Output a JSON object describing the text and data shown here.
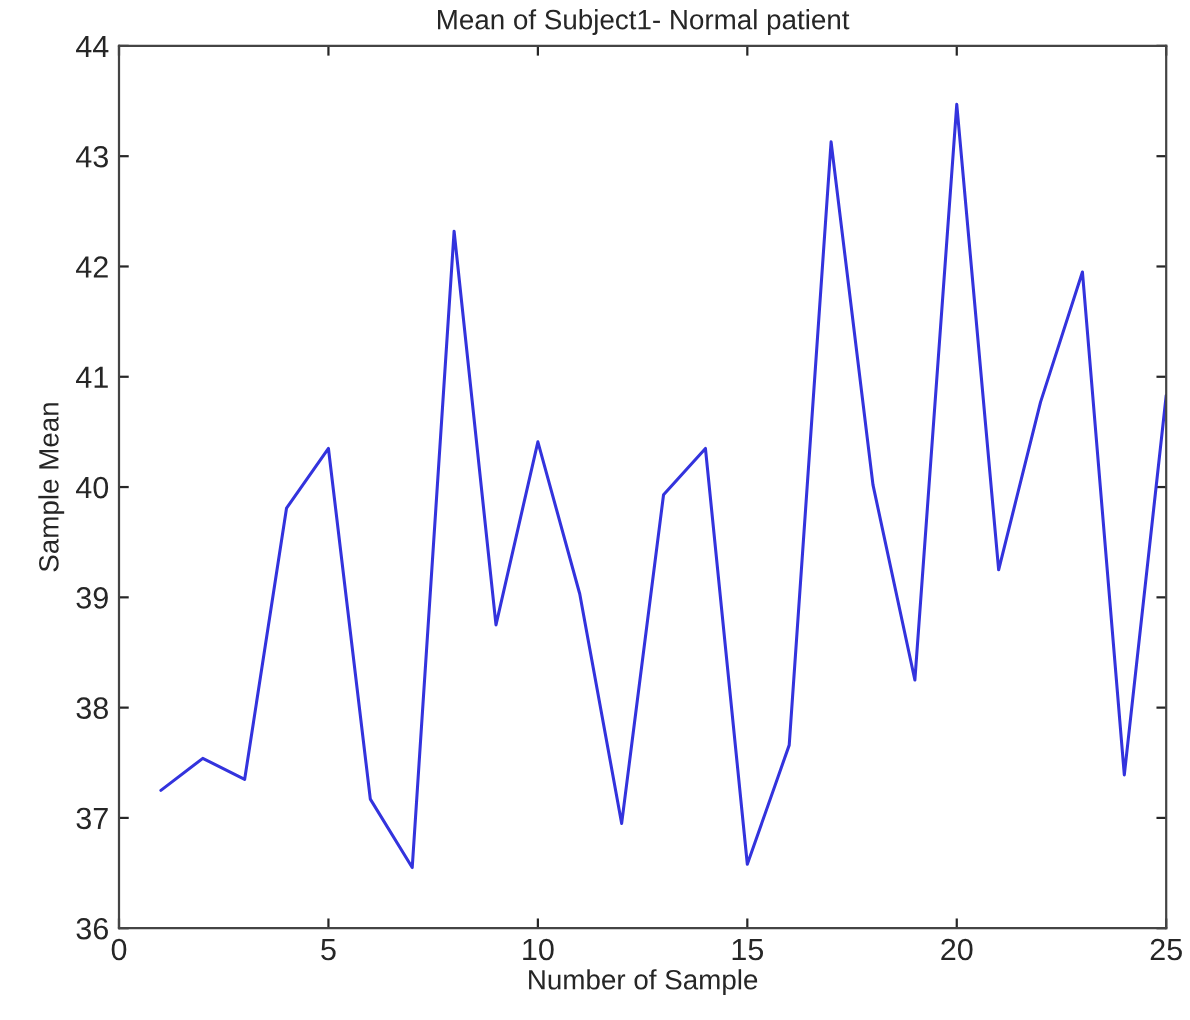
{
  "chart_data": {
    "type": "line",
    "title": "Mean of Subject1- Normal patient",
    "xlabel": "Number of Sample",
    "ylabel": "Sample Mean",
    "x": [
      1,
      2,
      3,
      4,
      5,
      6,
      7,
      8,
      9,
      10,
      11,
      12,
      13,
      14,
      15,
      16,
      17,
      18,
      19,
      20,
      21,
      22,
      23,
      24,
      25
    ],
    "series": [
      {
        "color": "#3333dd",
        "values": [
          37.25,
          37.54,
          37.35,
          39.81,
          40.35,
          37.17,
          36.55,
          42.32,
          38.75,
          40.41,
          39.03,
          36.95,
          39.93,
          40.35,
          36.58,
          37.66,
          43.13,
          40.02,
          38.25,
          43.47,
          39.25,
          40.77,
          41.95,
          37.39,
          40.83
        ]
      }
    ],
    "xlim": [
      0,
      25
    ],
    "xticks": [
      0,
      5,
      10,
      15,
      20,
      25
    ],
    "ylim": [
      36,
      44
    ],
    "yticks": [
      36,
      37,
      38,
      39,
      40,
      41,
      42,
      43,
      44
    ],
    "grid": false,
    "legend": false,
    "marker": "none",
    "line_style": "solid"
  }
}
